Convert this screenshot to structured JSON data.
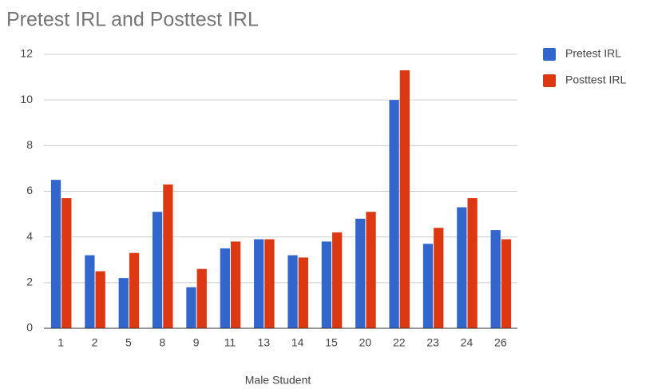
{
  "chart_data": {
    "type": "bar",
    "title": "Pretest IRL and Posttest IRL",
    "x_label": "Male Student",
    "categories": [
      "1",
      "2",
      "5",
      "8",
      "9",
      "11",
      "13",
      "14",
      "15",
      "20",
      "22",
      "23",
      "24",
      "26"
    ],
    "series": [
      {
        "name": "Pretest IRL",
        "color": "#3366cc",
        "values": [
          6.5,
          3.2,
          2.2,
          5.1,
          1.8,
          3.5,
          3.9,
          3.2,
          3.8,
          4.8,
          10.0,
          3.7,
          5.3,
          4.3
        ]
      },
      {
        "name": "Posttest IRL",
        "color": "#dc3912",
        "values": [
          5.7,
          2.5,
          3.3,
          6.3,
          2.6,
          3.8,
          3.9,
          3.1,
          4.2,
          5.1,
          11.3,
          4.4,
          5.7,
          3.9
        ]
      }
    ],
    "ylim": [
      0,
      12
    ],
    "yticks": [
      0,
      2,
      4,
      6,
      8,
      10,
      12
    ],
    "grid": true,
    "legend": "right"
  }
}
